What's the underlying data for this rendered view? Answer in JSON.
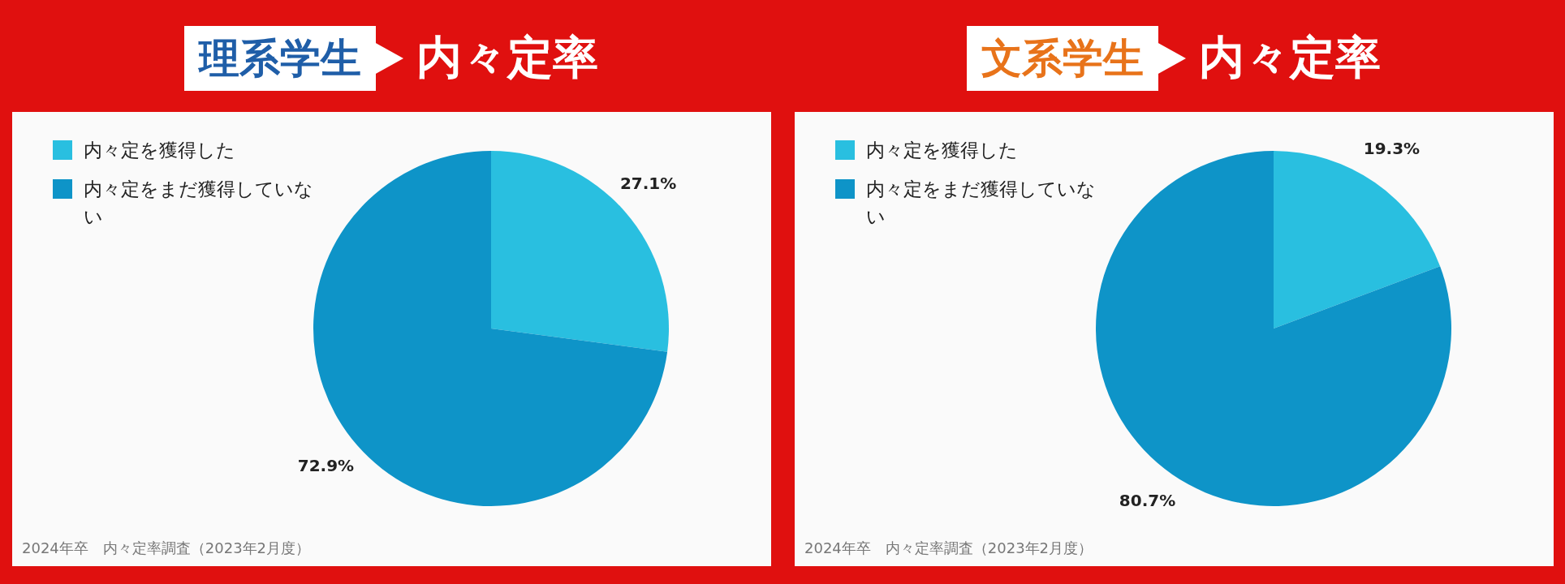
{
  "chart_data": [
    {
      "type": "pie",
      "title": "理系学生",
      "subtitle": "内々定率",
      "categories": [
        "内々定を獲得した",
        "内々定をまだ獲得していない"
      ],
      "values": [
        27.1,
        72.9
      ],
      "colors": [
        "#29bfe0",
        "#0e94c8"
      ],
      "value_labels": [
        "27.1%",
        "72.9%"
      ],
      "legend": "top left",
      "annotations": [
        "2024年卒　内々定率調査（2023年2月度）"
      ]
    },
    {
      "type": "pie",
      "title": "文系学生",
      "subtitle": "内々定率",
      "categories": [
        "内々定を獲得した",
        "内々定をまだ獲得していない"
      ],
      "values": [
        19.3,
        80.7
      ],
      "colors": [
        "#29bfe0",
        "#0e94c8"
      ],
      "value_labels": [
        "19.3%",
        "80.7%"
      ],
      "legend": "top left",
      "annotations": [
        "2024年卒　内々定率調査（2023年2月度）"
      ]
    }
  ]
}
